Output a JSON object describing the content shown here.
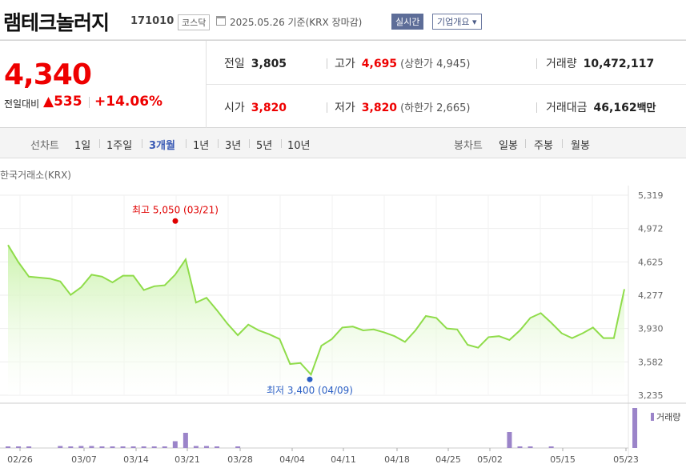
{
  "header": {
    "company": "램테크놀러지",
    "code": "171010",
    "market": "코스닥",
    "date": "2025.05.26 기준(KRX 장마감)",
    "live": "실시간",
    "info": "기업개요 ▾"
  },
  "quote": {
    "price": "4,340",
    "change_label": "전일대비",
    "change": "▲535",
    "change_pct": "+14.06%",
    "prev_label": "전일",
    "prev": "3,805",
    "high_label": "고가",
    "high": "4,695",
    "upper_label": "(상한가",
    "upper": "4,945)",
    "volume_label": "거래량",
    "volume": "10,472,117",
    "open_label": "시가",
    "open": "3,820",
    "low_label": "저가",
    "low": "3,820",
    "lower_label": "(하한가",
    "lower": "2,665)",
    "amount_label": "거래대금",
    "amount": "46,162",
    "amount_unit": "백만"
  },
  "tabs": {
    "line_label": "선차트",
    "periods": [
      "1일",
      "1주일",
      "3개월",
      "1년",
      "3년",
      "5년",
      "10년"
    ],
    "active": "3개월",
    "candle_label": "봉차트",
    "candles": [
      "일봉",
      "주봉",
      "월봉"
    ]
  },
  "exchange": "한국거래소(KRX)",
  "colors": {
    "up": "#e00000",
    "line": "#8fdc4a",
    "volume": "#9b84c9",
    "low_marker": "#2b5fc4"
  },
  "chart_data": {
    "type": "area",
    "y_ticks": [
      "5,319",
      "4,972",
      "4,625",
      "4,277",
      "3,930",
      "3,582",
      "3,235"
    ],
    "ylim": [
      3235,
      5319
    ],
    "x_ticks": [
      "02/26",
      "03/07",
      "03/14",
      "03/21",
      "03/28",
      "04/04",
      "04/11",
      "04/18",
      "04/25",
      "05/02",
      "05/15",
      "05/23"
    ],
    "series": [
      {
        "values": [
          4800,
          4620,
          4470,
          4460,
          4450,
          4420,
          4280,
          4360,
          4490,
          4470,
          4410,
          4480,
          4480,
          4330,
          4370,
          4380,
          4490,
          4650,
          4200,
          4250,
          4120,
          3980,
          3860,
          3970,
          3910,
          3870,
          3820,
          3560,
          3570,
          3450,
          3750,
          3820,
          3940,
          3950,
          3910,
          3920,
          3890,
          3850,
          3790,
          3910,
          4060,
          4040,
          3930,
          3920,
          3760,
          3730,
          3840,
          3850,
          3810,
          3910,
          4040,
          4090,
          3990,
          3880,
          3830,
          3880,
          3940,
          3830,
          3830,
          4340
        ]
      }
    ],
    "annotations": {
      "high": "최고 5,050 (03/21)",
      "high_value": 5050,
      "low": "최저 3,400 (04/09)",
      "low_value": 3400
    },
    "volume": {
      "label": "거래량",
      "values": [
        0.03,
        0.03,
        0.03,
        0,
        0,
        0.05,
        0.03,
        0.05,
        0.05,
        0.04,
        0.03,
        0.03,
        0.02,
        0.02,
        0.02,
        0.03,
        0.17,
        0.38,
        0.05,
        0.05,
        0.03,
        0,
        0.02,
        0,
        0,
        0,
        0,
        0,
        0,
        0,
        0,
        0,
        0,
        0,
        0,
        0,
        0,
        0,
        0,
        0,
        0,
        0,
        0,
        0,
        0,
        0,
        0,
        0,
        0.4,
        0.03,
        0.02,
        0,
        0.02,
        0,
        0,
        0,
        0,
        0,
        0,
        0,
        1.0
      ]
    }
  }
}
